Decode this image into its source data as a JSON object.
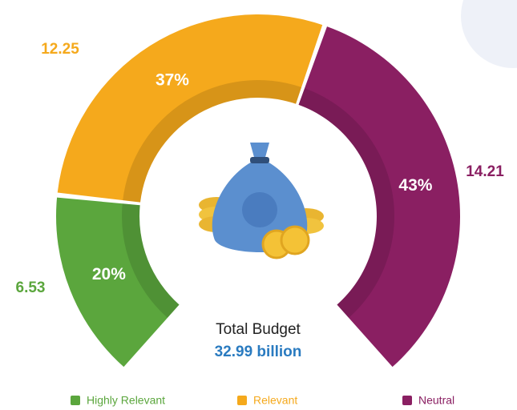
{
  "chart_data": {
    "type": "horseshoe",
    "categories": [
      "Highly Relevant",
      "Relevant",
      "Neutral"
    ],
    "values": [
      6.53,
      12.25,
      14.21
    ],
    "percentages": [
      20,
      37,
      43
    ],
    "percent_labels": [
      "20%",
      "37%",
      "43%"
    ],
    "colors": [
      "#5ba63d",
      "#f5a91c",
      "#8a1f62"
    ],
    "center_label": "Total Budget",
    "center_value": "32.99 billion",
    "legend": "bottom"
  }
}
